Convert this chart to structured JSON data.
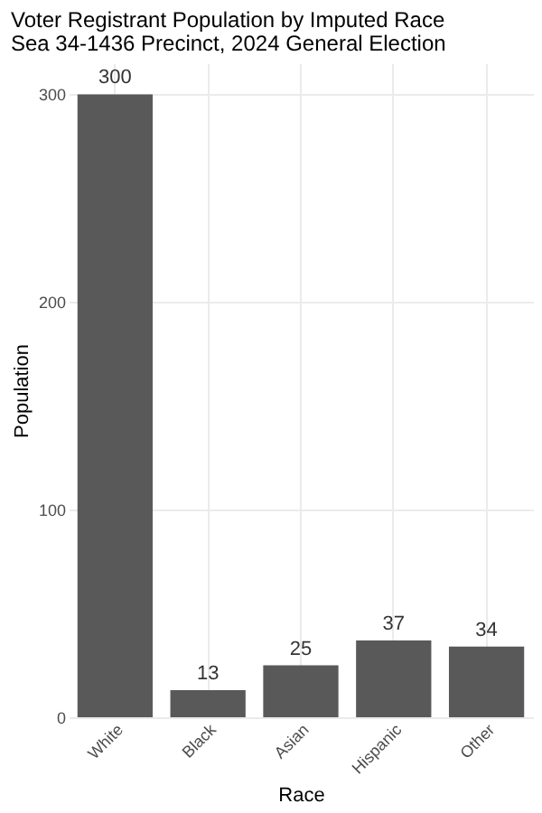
{
  "chart_data": {
    "type": "bar",
    "title": "Voter Registrant Population by Imputed Race",
    "subtitle": "Sea 34-1436 Precinct,  2024 General Election",
    "xlabel": "Race",
    "ylabel": "Population",
    "categories": [
      "White",
      "Black",
      "Asian",
      "Hispanic",
      "Other"
    ],
    "values": [
      300,
      13,
      25,
      37,
      34
    ],
    "color": "#595959",
    "ylim": [
      0,
      315
    ],
    "yticks": [
      0,
      100,
      200,
      300
    ],
    "grid": true,
    "data_labels": true
  }
}
